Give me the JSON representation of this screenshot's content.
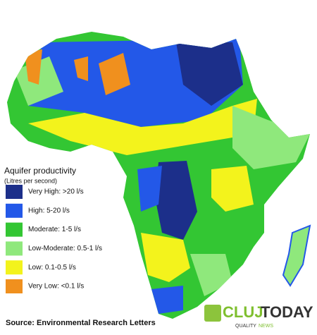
{
  "legend": {
    "title": "Aquifer productivity",
    "subtitle": "(Litres per second)",
    "items": [
      {
        "label": "Very High: >20 l/s",
        "color": "#1c2f8a"
      },
      {
        "label": "High: 5-20 l/s",
        "color": "#2358e8"
      },
      {
        "label": "Moderate: 1-5 l/s",
        "color": "#33c633"
      },
      {
        "label": "Low-Moderate: 0.5-1 l/s",
        "color": "#8fe87c"
      },
      {
        "label": "Low: 0.1-0.5 l/s",
        "color": "#f3f31c"
      },
      {
        "label": "Very Low: <0.1 l/s",
        "color": "#f0901e"
      }
    ]
  },
  "source": "Source: Environmental Research Letters",
  "logo": {
    "brand_1": "CLUJ",
    "brand_2": "TODAY",
    "tagline_1": "QUALITY",
    "tagline_2": "NEWS"
  }
}
